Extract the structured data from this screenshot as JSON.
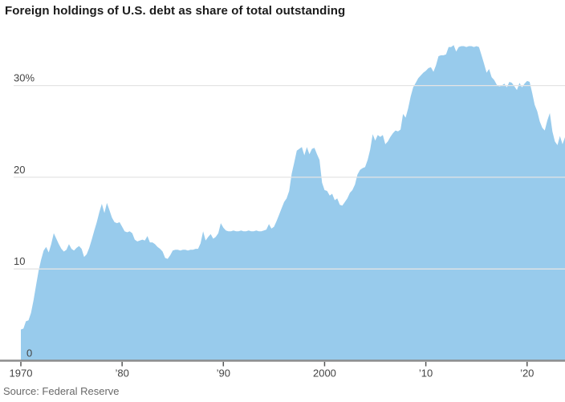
{
  "header": {
    "title": "Foreign holdings of U.S. debt as share of total outstanding"
  },
  "footer": {
    "source": "Source: Federal Reserve"
  },
  "chart_data": {
    "type": "area",
    "title": "Foreign holdings of U.S. debt as share of total outstanding",
    "source": "Source: Federal Reserve",
    "ylabel": "",
    "xlabel": "",
    "unit": "percent",
    "grid": "on",
    "legend": "none",
    "fill_color": "#98cbec",
    "gridline_color": "#e4e4e4",
    "axis_color": "#8c8c8c",
    "tick_color": "#555555",
    "text_color": "#444444",
    "x_range": [
      1970,
      2023.75
    ],
    "y_range": [
      0,
      36
    ],
    "y_ticks": [
      {
        "value": 0,
        "label": "0"
      },
      {
        "value": 10,
        "label": "10"
      },
      {
        "value": 20,
        "label": "20"
      },
      {
        "value": 30,
        "label": "30%"
      }
    ],
    "x_ticks": [
      {
        "value": 1970,
        "label": "1970"
      },
      {
        "value": 1980,
        "label": "’80"
      },
      {
        "value": 1990,
        "label": "’90"
      },
      {
        "value": 2000,
        "label": "2000"
      },
      {
        "value": 2010,
        "label": "’10"
      },
      {
        "value": 2020,
        "label": "’20"
      }
    ],
    "series": [
      {
        "name": "Foreign holdings share of total U.S. debt outstanding (%)",
        "points": [
          [
            1970.0,
            3.4
          ],
          [
            1970.25,
            3.5
          ],
          [
            1970.5,
            4.3
          ],
          [
            1970.75,
            4.4
          ],
          [
            1971.0,
            5.2
          ],
          [
            1971.25,
            6.6
          ],
          [
            1971.5,
            8.2
          ],
          [
            1971.75,
            9.8
          ],
          [
            1972.0,
            11.0
          ],
          [
            1972.25,
            12.0
          ],
          [
            1972.5,
            12.4
          ],
          [
            1972.75,
            11.8
          ],
          [
            1973.0,
            12.7
          ],
          [
            1973.25,
            13.9
          ],
          [
            1973.5,
            13.3
          ],
          [
            1973.75,
            12.7
          ],
          [
            1974.0,
            12.2
          ],
          [
            1974.25,
            11.9
          ],
          [
            1974.5,
            12.1
          ],
          [
            1974.75,
            12.7
          ],
          [
            1975.0,
            12.2
          ],
          [
            1975.25,
            12.0
          ],
          [
            1975.5,
            12.3
          ],
          [
            1975.75,
            12.5
          ],
          [
            1976.0,
            12.2
          ],
          [
            1976.25,
            11.3
          ],
          [
            1976.5,
            11.6
          ],
          [
            1976.75,
            12.3
          ],
          [
            1977.0,
            13.2
          ],
          [
            1977.25,
            14.2
          ],
          [
            1977.5,
            15.1
          ],
          [
            1977.75,
            16.2
          ],
          [
            1978.0,
            17.1
          ],
          [
            1978.25,
            16.1
          ],
          [
            1978.5,
            17.2
          ],
          [
            1978.75,
            16.4
          ],
          [
            1979.0,
            15.6
          ],
          [
            1979.25,
            15.1
          ],
          [
            1979.5,
            15.0
          ],
          [
            1979.75,
            15.1
          ],
          [
            1980.0,
            14.6
          ],
          [
            1980.25,
            14.1
          ],
          [
            1980.5,
            14.0
          ],
          [
            1980.75,
            14.1
          ],
          [
            1981.0,
            13.9
          ],
          [
            1981.25,
            13.2
          ],
          [
            1981.5,
            13.0
          ],
          [
            1981.75,
            13.1
          ],
          [
            1982.0,
            13.2
          ],
          [
            1982.25,
            13.1
          ],
          [
            1982.5,
            13.6
          ],
          [
            1982.75,
            12.9
          ],
          [
            1983.0,
            12.9
          ],
          [
            1983.25,
            12.7
          ],
          [
            1983.5,
            12.4
          ],
          [
            1983.75,
            12.2
          ],
          [
            1984.0,
            11.9
          ],
          [
            1984.25,
            11.2
          ],
          [
            1984.5,
            11.1
          ],
          [
            1984.75,
            11.5
          ],
          [
            1985.0,
            12.0
          ],
          [
            1985.25,
            12.1
          ],
          [
            1985.5,
            12.1
          ],
          [
            1985.75,
            12.0
          ],
          [
            1986.0,
            12.1
          ],
          [
            1986.25,
            12.1
          ],
          [
            1986.5,
            12.0
          ],
          [
            1986.75,
            12.1
          ],
          [
            1987.0,
            12.1
          ],
          [
            1987.25,
            12.2
          ],
          [
            1987.5,
            12.2
          ],
          [
            1987.75,
            12.8
          ],
          [
            1988.0,
            14.1
          ],
          [
            1988.25,
            13.1
          ],
          [
            1988.5,
            13.5
          ],
          [
            1988.75,
            13.8
          ],
          [
            1989.0,
            13.3
          ],
          [
            1989.25,
            13.5
          ],
          [
            1989.5,
            13.9
          ],
          [
            1989.75,
            15.0
          ],
          [
            1990.0,
            14.5
          ],
          [
            1990.25,
            14.2
          ],
          [
            1990.5,
            14.1
          ],
          [
            1990.75,
            14.1
          ],
          [
            1991.0,
            14.2
          ],
          [
            1991.25,
            14.1
          ],
          [
            1991.5,
            14.1
          ],
          [
            1991.75,
            14.2
          ],
          [
            1992.0,
            14.1
          ],
          [
            1992.25,
            14.1
          ],
          [
            1992.5,
            14.2
          ],
          [
            1992.75,
            14.1
          ],
          [
            1993.0,
            14.1
          ],
          [
            1993.25,
            14.2
          ],
          [
            1993.5,
            14.1
          ],
          [
            1993.75,
            14.1
          ],
          [
            1994.0,
            14.2
          ],
          [
            1994.25,
            14.3
          ],
          [
            1994.5,
            14.9
          ],
          [
            1994.75,
            14.4
          ],
          [
            1995.0,
            14.6
          ],
          [
            1995.25,
            15.2
          ],
          [
            1995.5,
            15.9
          ],
          [
            1995.75,
            16.6
          ],
          [
            1996.0,
            17.3
          ],
          [
            1996.25,
            17.7
          ],
          [
            1996.5,
            18.5
          ],
          [
            1996.75,
            20.4
          ],
          [
            1997.0,
            21.6
          ],
          [
            1997.25,
            22.9
          ],
          [
            1997.5,
            23.1
          ],
          [
            1997.75,
            23.3
          ],
          [
            1998.0,
            22.4
          ],
          [
            1998.25,
            23.3
          ],
          [
            1998.5,
            22.5
          ],
          [
            1998.75,
            23.1
          ],
          [
            1999.0,
            23.2
          ],
          [
            1999.25,
            22.5
          ],
          [
            1999.5,
            21.9
          ],
          [
            1999.75,
            19.4
          ],
          [
            2000.0,
            18.6
          ],
          [
            2000.25,
            18.5
          ],
          [
            2000.5,
            18.0
          ],
          [
            2000.75,
            18.2
          ],
          [
            2001.0,
            17.5
          ],
          [
            2001.25,
            17.7
          ],
          [
            2001.5,
            17.0
          ],
          [
            2001.75,
            16.9
          ],
          [
            2002.0,
            17.3
          ],
          [
            2002.25,
            17.7
          ],
          [
            2002.5,
            18.3
          ],
          [
            2002.75,
            18.6
          ],
          [
            2003.0,
            19.2
          ],
          [
            2003.25,
            20.3
          ],
          [
            2003.5,
            20.8
          ],
          [
            2003.75,
            21.0
          ],
          [
            2004.0,
            21.1
          ],
          [
            2004.25,
            21.9
          ],
          [
            2004.5,
            23.0
          ],
          [
            2004.75,
            24.7
          ],
          [
            2005.0,
            24.0
          ],
          [
            2005.25,
            24.6
          ],
          [
            2005.5,
            24.4
          ],
          [
            2005.75,
            24.6
          ],
          [
            2006.0,
            23.6
          ],
          [
            2006.25,
            23.9
          ],
          [
            2006.5,
            24.4
          ],
          [
            2006.75,
            24.8
          ],
          [
            2007.0,
            25.1
          ],
          [
            2007.25,
            25.0
          ],
          [
            2007.5,
            25.2
          ],
          [
            2007.75,
            26.9
          ],
          [
            2008.0,
            26.5
          ],
          [
            2008.25,
            27.5
          ],
          [
            2008.5,
            28.8
          ],
          [
            2008.75,
            29.8
          ],
          [
            2009.0,
            30.3
          ],
          [
            2009.25,
            30.8
          ],
          [
            2009.5,
            31.1
          ],
          [
            2009.75,
            31.4
          ],
          [
            2010.0,
            31.6
          ],
          [
            2010.25,
            31.9
          ],
          [
            2010.5,
            32.0
          ],
          [
            2010.75,
            31.5
          ],
          [
            2011.0,
            32.2
          ],
          [
            2011.25,
            33.2
          ],
          [
            2011.5,
            33.3
          ],
          [
            2011.75,
            33.3
          ],
          [
            2012.0,
            33.4
          ],
          [
            2012.25,
            34.2
          ],
          [
            2012.5,
            34.2
          ],
          [
            2012.75,
            34.4
          ],
          [
            2013.0,
            33.7
          ],
          [
            2013.25,
            34.2
          ],
          [
            2013.5,
            34.3
          ],
          [
            2013.75,
            34.3
          ],
          [
            2014.0,
            34.2
          ],
          [
            2014.25,
            34.3
          ],
          [
            2014.5,
            34.3
          ],
          [
            2014.75,
            34.2
          ],
          [
            2015.0,
            34.3
          ],
          [
            2015.25,
            34.2
          ],
          [
            2015.5,
            33.3
          ],
          [
            2015.75,
            32.4
          ],
          [
            2016.0,
            31.4
          ],
          [
            2016.25,
            31.8
          ],
          [
            2016.5,
            30.9
          ],
          [
            2016.75,
            30.6
          ],
          [
            2017.0,
            30.1
          ],
          [
            2017.25,
            29.9
          ],
          [
            2017.5,
            30.0
          ],
          [
            2017.75,
            30.2
          ],
          [
            2018.0,
            29.8
          ],
          [
            2018.25,
            30.4
          ],
          [
            2018.5,
            30.3
          ],
          [
            2018.75,
            29.9
          ],
          [
            2019.0,
            29.5
          ],
          [
            2019.25,
            30.3
          ],
          [
            2019.5,
            29.8
          ],
          [
            2019.75,
            30.2
          ],
          [
            2020.0,
            30.5
          ],
          [
            2020.25,
            30.4
          ],
          [
            2020.5,
            29.2
          ],
          [
            2020.75,
            27.9
          ],
          [
            2021.0,
            27.2
          ],
          [
            2021.25,
            26.1
          ],
          [
            2021.5,
            25.4
          ],
          [
            2021.75,
            25.1
          ],
          [
            2022.0,
            26.2
          ],
          [
            2022.25,
            27.0
          ],
          [
            2022.5,
            25.0
          ],
          [
            2022.75,
            23.9
          ],
          [
            2023.0,
            23.5
          ],
          [
            2023.25,
            24.5
          ],
          [
            2023.5,
            23.6
          ],
          [
            2023.75,
            24.4
          ]
        ]
      }
    ]
  }
}
